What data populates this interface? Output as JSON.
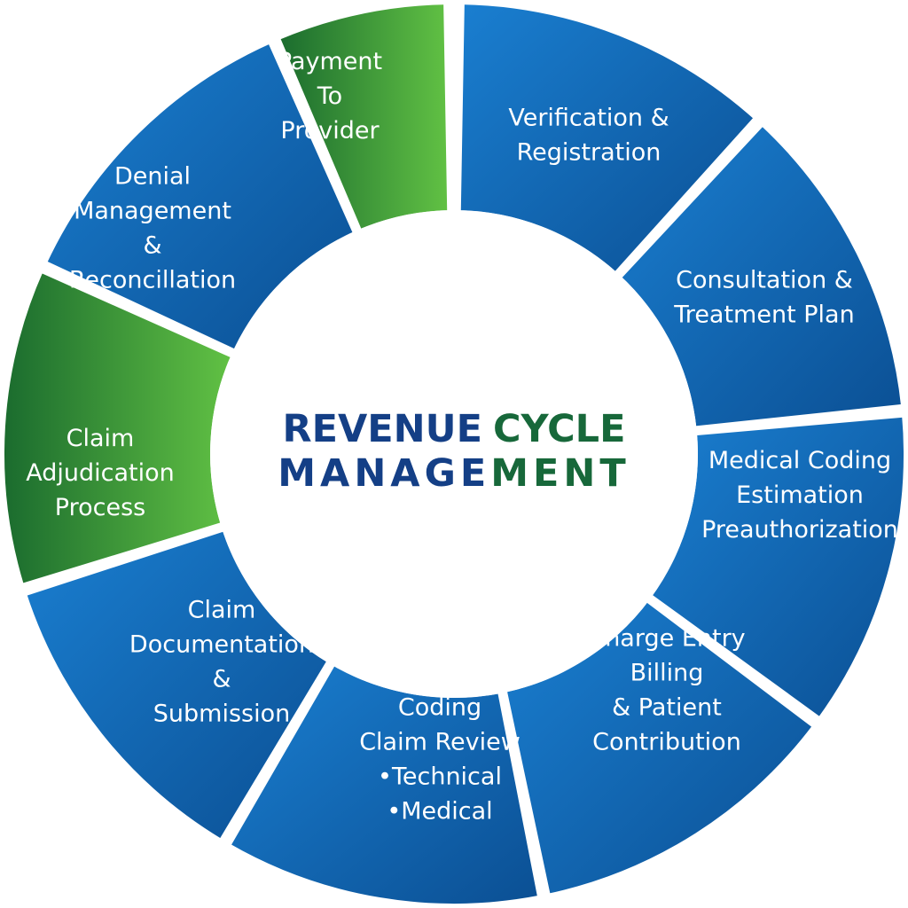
{
  "title": {
    "line1_part1": "REVENUE",
    "line1_part2": "CYCLE",
    "line2_part1": "MANAGE",
    "line2_part2": "MENT"
  },
  "colors": {
    "blue_dark": "#0b4f93",
    "blue_light": "#1a7fd1",
    "green_dark": "#1a6b2e",
    "green_light": "#62c244",
    "title_blue": "#143f86",
    "title_green": "#17683a",
    "white": "#ffffff"
  },
  "segments": [
    {
      "id": "verification-registration",
      "lines": [
        "Verification &",
        "Registration"
      ],
      "color": "blue"
    },
    {
      "id": "consultation-treatment",
      "lines": [
        "Consultation &",
        "Treatment Plan"
      ],
      "color": "blue"
    },
    {
      "id": "coding-estimation-preauth",
      "lines": [
        "Medical Coding",
        "Estimation",
        "Preauthorization"
      ],
      "color": "blue"
    },
    {
      "id": "charge-entry-billing",
      "lines": [
        "Charge Entry",
        "Billing",
        "& Patient",
        "Contribution"
      ],
      "color": "blue"
    },
    {
      "id": "coding-claim-review",
      "lines": [
        "Coding",
        "Claim Review",
        "•Technical",
        "•Medical"
      ],
      "color": "blue"
    },
    {
      "id": "claim-documentation",
      "lines": [
        "Claim",
        "Documentation",
        "&",
        "Submission"
      ],
      "color": "blue"
    },
    {
      "id": "claim-adjudication",
      "lines": [
        "Claim",
        "Adjudication",
        "Process"
      ],
      "color": "green"
    },
    {
      "id": "denial-management",
      "lines": [
        "Denial",
        "Management",
        "&",
        "Reconcillation"
      ],
      "color": "blue"
    },
    {
      "id": "payment-to-provider",
      "lines": [
        "Payment",
        "To",
        "Provider"
      ],
      "color": "green"
    }
  ]
}
